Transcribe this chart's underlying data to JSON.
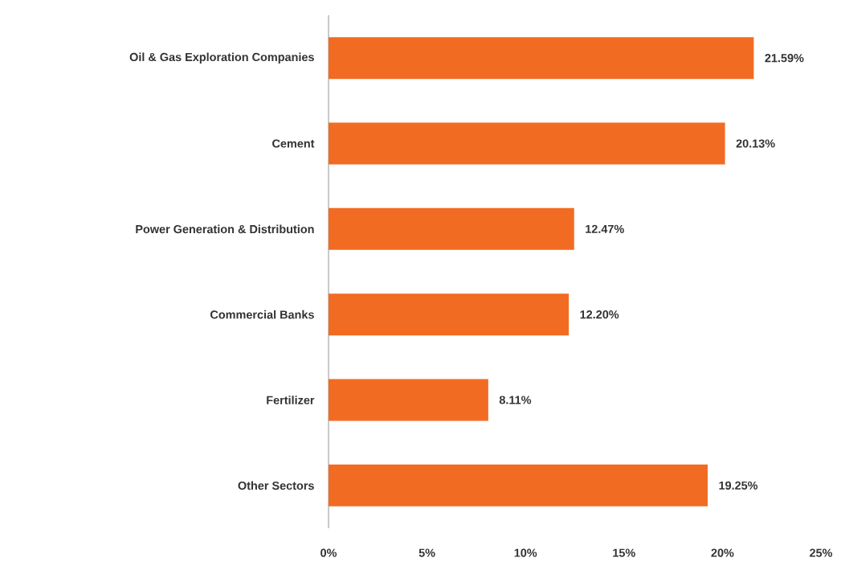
{
  "chart_data": {
    "type": "bar",
    "orientation": "horizontal",
    "categories": [
      "Oil & Gas Exploration Companies",
      "Cement",
      "Power Generation & Distribution",
      "Commercial Banks",
      "Fertilizer",
      "Other Sectors"
    ],
    "values": [
      21.59,
      20.13,
      12.47,
      12.2,
      8.11,
      19.25
    ],
    "value_labels": [
      "21.59%",
      "20.13%",
      "12.47%",
      "12.20%",
      "8.11%",
      "19.25%"
    ],
    "color": "#f26b22",
    "xlim": [
      0,
      25
    ],
    "xticks": [
      {
        "value": 0,
        "label": "0%"
      },
      {
        "value": 5,
        "label": "5%"
      },
      {
        "value": 10,
        "label": "10%"
      },
      {
        "value": 15,
        "label": "15%"
      },
      {
        "value": 20,
        "label": "20%"
      },
      {
        "value": 25,
        "label": "25%"
      }
    ]
  }
}
